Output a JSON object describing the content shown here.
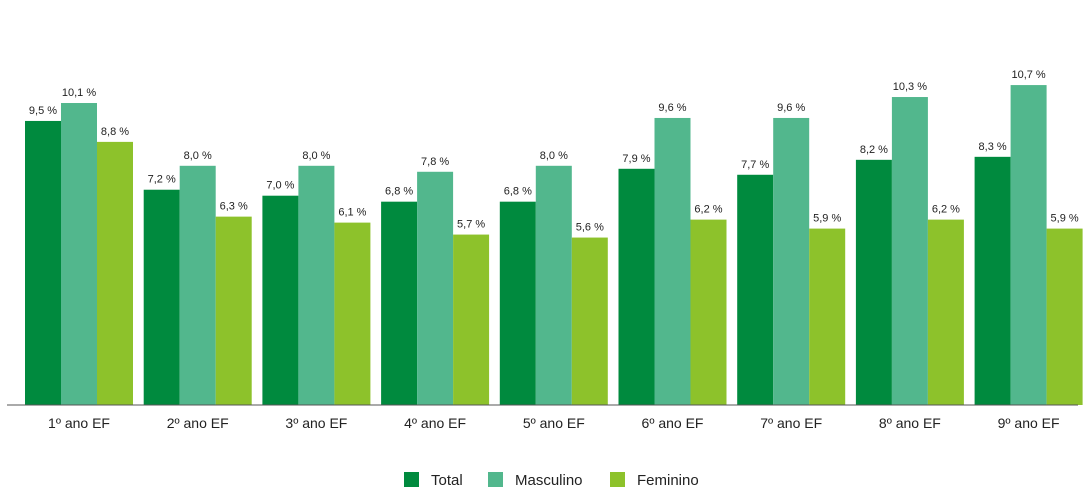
{
  "chart_data": {
    "type": "bar",
    "title": "",
    "xlabel": "",
    "ylabel": "",
    "ylim": [
      0,
      11
    ],
    "grid": false,
    "legend_position": "bottom",
    "value_suffix": " %",
    "categories": [
      "1º ano EF",
      "2º ano EF",
      "3º ano EF",
      "4º ano EF",
      "5º ano EF",
      "6º ano EF",
      "7º ano EF",
      "8º ano EF",
      "9º ano EF"
    ],
    "series": [
      {
        "name": "Total",
        "color": "#008a3e",
        "values": [
          9.5,
          7.2,
          7.0,
          6.8,
          6.8,
          7.9,
          7.7,
          8.2,
          8.3
        ],
        "labels": [
          "9,5 %",
          "7,2 %",
          "7,0 %",
          "6,8 %",
          "6,8 %",
          "7,9 %",
          "7,7 %",
          "8,2 %",
          "8,3 %"
        ]
      },
      {
        "name": "Masculino",
        "color": "#52b78d",
        "values": [
          10.1,
          8.0,
          8.0,
          7.8,
          8.0,
          9.6,
          9.6,
          10.3,
          10.7
        ],
        "labels": [
          "10,1 %",
          "8,0 %",
          "8,0 %",
          "7,8 %",
          "8,0 %",
          "9,6 %",
          "9,6 %",
          "10,3 %",
          "10,7 %"
        ]
      },
      {
        "name": "Feminino",
        "color": "#8dc22b",
        "values": [
          8.8,
          6.3,
          6.1,
          5.7,
          5.6,
          6.2,
          5.9,
          6.2,
          5.9
        ],
        "labels": [
          "8,8 %",
          "6,3 %",
          "6,1 %",
          "5,7 %",
          "5,6 %",
          "6,2 %",
          "5,9 %",
          "6,2 %",
          "5,9 %"
        ]
      }
    ]
  }
}
